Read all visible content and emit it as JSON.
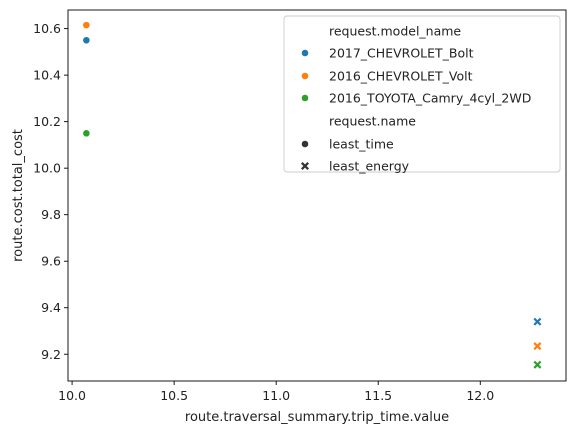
{
  "chart_data": {
    "type": "scatter",
    "xlabel": "route.traversal_summary.trip_time.value",
    "ylabel": "route.cost.total_cost",
    "xlim": [
      9.98,
      12.42
    ],
    "ylim": [
      9.085,
      10.68
    ],
    "xticks": [
      "10.0",
      "10.5",
      "11.0",
      "11.5",
      "12.0"
    ],
    "xtick_values": [
      10.0,
      10.5,
      11.0,
      11.5,
      12.0
    ],
    "yticks": [
      "9.2",
      "9.4",
      "9.6",
      "9.8",
      "10.0",
      "10.2",
      "10.4",
      "10.6"
    ],
    "ytick_values": [
      9.2,
      9.4,
      9.6,
      9.8,
      10.0,
      10.2,
      10.4,
      10.6
    ],
    "grid": false,
    "legend_position": "top-right",
    "legend": {
      "hue_title": "request.model_name",
      "hue_entries": [
        {
          "label": "2017_CHEVROLET_Bolt",
          "color": "#1f77b4"
        },
        {
          "label": "2016_CHEVROLET_Volt",
          "color": "#ff7f0e"
        },
        {
          "label": "2016_TOYOTA_Camry_4cyl_2WD",
          "color": "#2ca02c"
        }
      ],
      "style_title": "request.name",
      "style_entries": [
        {
          "label": "least_time",
          "marker": "circle"
        },
        {
          "label": "least_energy",
          "marker": "x"
        }
      ]
    },
    "series": [
      {
        "model": "2017_CHEVROLET_Bolt",
        "color": "#1f77b4",
        "points": [
          {
            "x": 10.07,
            "y": 10.55,
            "marker": "circle"
          },
          {
            "x": 12.28,
            "y": 9.34,
            "marker": "x"
          }
        ]
      },
      {
        "model": "2016_CHEVROLET_Volt",
        "color": "#ff7f0e",
        "points": [
          {
            "x": 10.07,
            "y": 10.615,
            "marker": "circle"
          },
          {
            "x": 12.28,
            "y": 9.235,
            "marker": "x"
          }
        ]
      },
      {
        "model": "2016_TOYOTA_Camry_4cyl_2WD",
        "color": "#2ca02c",
        "points": [
          {
            "x": 10.07,
            "y": 10.15,
            "marker": "circle"
          },
          {
            "x": 12.28,
            "y": 9.155,
            "marker": "x"
          }
        ]
      }
    ]
  }
}
